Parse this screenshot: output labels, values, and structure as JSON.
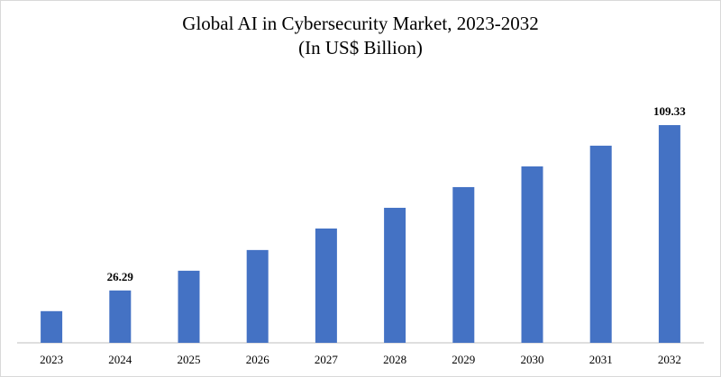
{
  "chart_data": {
    "type": "bar",
    "title": "Global AI in Cybersecurity Market, 2023-2032",
    "subtitle": "(In US$ Billion)",
    "categories": [
      "2023",
      "2024",
      "2025",
      "2026",
      "2027",
      "2028",
      "2029",
      "2030",
      "2031",
      "2032"
    ],
    "values": [
      15.9,
      26.29,
      36.2,
      46.6,
      57.4,
      67.8,
      78.2,
      88.6,
      99.0,
      109.33
    ],
    "value_labels": [
      null,
      "26.29",
      null,
      null,
      null,
      null,
      null,
      null,
      null,
      "109.33"
    ],
    "color": "#4472c4",
    "ylim": [
      0,
      115
    ]
  }
}
